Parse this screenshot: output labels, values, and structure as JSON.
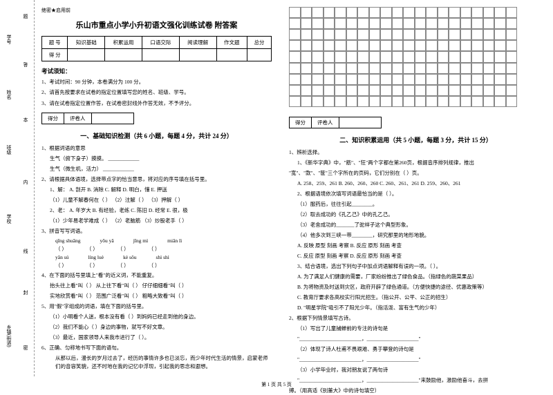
{
  "binding": {
    "labels": [
      "学号",
      "姓名",
      "班级",
      "学校",
      "乡镇(街道)"
    ],
    "cuts": [
      "题",
      "答",
      "本",
      "内",
      "线",
      "封",
      "密"
    ]
  },
  "header_tag": "绝密★启用前",
  "title": "乐山市重点小学小升初语文强化训练试卷 附答案",
  "score_table": {
    "row1": [
      "题  号",
      "知识基础",
      "积累运用",
      "口语交际",
      "阅读理解",
      "作文题",
      "总分"
    ],
    "row2": [
      "得  分",
      "",
      "",
      "",
      "",
      "",
      ""
    ]
  },
  "notice_heading": "考试须知：",
  "notices": [
    "1、考试时间：90 分钟，本卷满分为 100 分。",
    "2、请首先按要求在试卷的指定位置填写您的姓名、班级、学号。",
    "3、请在试卷指定位置作答，在试卷密封线外作答无效，不予评分。"
  ],
  "grader": {
    "label1": "得分",
    "label2": "评卷人"
  },
  "section1": {
    "title": "一、基础知识检测（共 6 小题，每题 4 分，共计 24 分）",
    "q1": "1、根据词语的意思",
    "q1_sub": [
      "生气（俯下身子）摸摸。  ____________",
      "生气（微生机，活力）  ____________"
    ],
    "q2": "2、请根据具体语境，选择带点字的恰当意思，将对应的序号填在括号里。",
    "q2_sub": [
      "1、解： A. 剖开  B. 消除  C. 解释  D. 明白，懂  E. 押送",
      "（1）儿童不解春何在（    ）  （2）注解（    ）  （3）押解（    ）",
      "2、老： A. 年岁大  B. 有经验，老练  C. 陈旧  D. 经常  E. 很，极",
      "（1）少年易老学难成（    ）  （2）老脑筋  （3）炒股老手（    ）"
    ],
    "q3": "3、拼音写写词语。",
    "pinyin": [
      [
        "qīng shuāng",
        "yōu yǎ",
        "jīng mì",
        "miǎn lì"
      ],
      [
        "（        ）",
        "（        ）",
        "（        ）",
        "（        ）"
      ],
      [
        "yǎn sú",
        "líng luè",
        "kè sǒu",
        "shì shì"
      ],
      [
        "（        ）",
        "（        ）",
        "（        ）",
        "（        ）"
      ]
    ],
    "q4": "4、在下面的括号里填上\"看\"的近义词，不能重复。",
    "q4_sub": [
      "抬头往上看\"叫（    ）  从上往下看\"叫（    ）  仔仔细细看\"叫（    ）",
      "实地欣赏看\"叫（    ）  范围广泛看\"叫（    ）  粗略大致看\"叫（    ）"
    ],
    "q5": "5、用\"假\"字组成的词语，填在下面的括号里。",
    "q5_sub": [
      "（1）小明看个人迷，根本没有看（    ）到妈妈已经走到他的身边。",
      "（2）我们不能心（    ）身边的事物，就写不好文章。",
      "（3）最近，国家领导人来我市进行了（    ）。"
    ],
    "q6": "6、正确、匀称地书写下面的语句。",
    "q6_text": "从那以后，漫长的岁月过去了，经历的事情许多也已淡忘，而少年时代生活的情景，启蒙老师们的音容笑貌，还不时地在我的记忆中浮现，引起我的思念和遐想。"
  },
  "section2": {
    "title": "二、知识积累运用（共 5 小题，每题 3 分，共计 15 分）",
    "q1": "1、辨析选择。",
    "q1_sub": [
      "1、《新华字典》中，\"筋\"、\"狂\"两个字都在第260页，根据音序排列规律，推出",
      "\"宽\"、\"款\"、\"筐\"三个字所在的页码，它们分别在（    ）页。",
      "A. 258、259、261  B. 260、260、260  C. 260、261、261  D. 259、260、261",
      "2、根据语境依次填写词语最恰当的是（    ）。",
      "（1）服药后，往往引起________。",
      "（2）取去成功的《孔乙己》中的孔乙己。",
      "（3）老舍成功的_______了驼祥子这个典型形象。",
      "（4）他多次到三峡一带________，研究那里的地形地貌。",
      "A. 反映  原型  刻画  考察    B. 反应  原形  刻画  考查",
      "C. 反应  原型  刻画  考察    D. 反应  原形  刻画  考查",
      "3、结合语境，选出下列句子中加点词语解释有误的一项。（    ）。",
      "A. 为了满足人们健康的需要，厂家纷纷推出了绿色食品。（指绿色的蔬菜果品）",
      "B. 为将物资及时送到灾区，政府开辟了绿色通道。（方便快捷的途径、优惠政策等）",
      "C. 教育厅要求各高校实行阳光招生。（指公开、公平、公正的招生）",
      "D. \"明星学院\"吸引不了阳光少年。（指活泼、富有生气的少年）"
    ],
    "q2": "2、根据下列情景填写古诗。",
    "q2_sub": [
      "（1）写出了儿童捕蝉前的专注的诗句是",
      "\"________________________，____________________\"",
      "（2）体现了诗人杜甫不畏艰难、勇于攀登的诗句是",
      "\"________________________，____________________\"",
      "（3）小学毕业时，我对朋友说了两句诗",
      "\"________________________，____________________\"来鼓励他，激励他奋斗，去拼",
      "搏。（用高适《别董大》中的诗句填空）"
    ]
  },
  "footer": "第 1 页  共 5 页"
}
